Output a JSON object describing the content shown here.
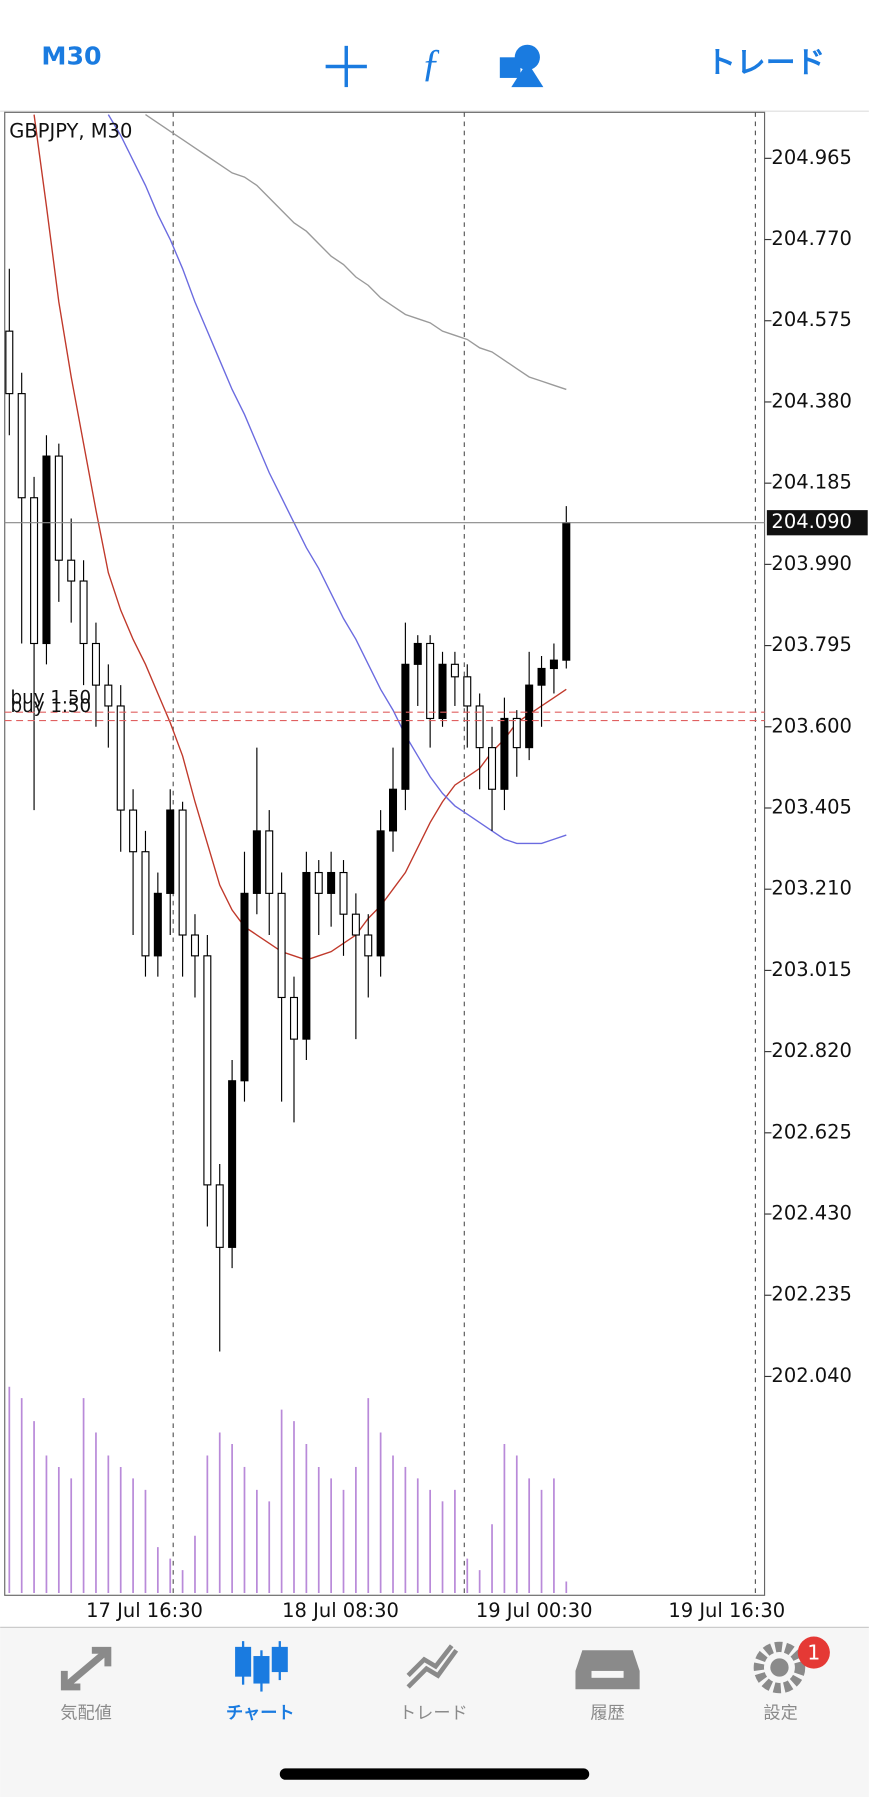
{
  "header": {
    "timeframe": "M30",
    "trade": "トレード"
  },
  "chart_data": {
    "type": "candlestick",
    "title": "GBPJPY, M30",
    "open": [
      204.55,
      204.4,
      204.15,
      203.8,
      204.25,
      204.0,
      203.95,
      203.8,
      203.7,
      203.65,
      203.4,
      203.3,
      203.05,
      203.2,
      203.4,
      203.1,
      203.05,
      202.5,
      202.35,
      202.75,
      203.2,
      203.35,
      203.2,
      202.95,
      202.85,
      203.25,
      203.2,
      203.25,
      203.15,
      203.1,
      203.05,
      203.35,
      203.45,
      203.75,
      203.8,
      203.62,
      203.75,
      203.72,
      203.65,
      203.55,
      203.45,
      203.62,
      203.55,
      203.7,
      203.74,
      203.76
    ],
    "high": [
      204.7,
      204.45,
      204.2,
      204.3,
      204.28,
      204.1,
      204.0,
      203.85,
      203.75,
      203.7,
      203.45,
      203.35,
      203.25,
      203.45,
      203.42,
      203.15,
      203.1,
      202.55,
      202.8,
      203.3,
      203.55,
      203.4,
      203.25,
      203.0,
      203.3,
      203.28,
      203.3,
      203.28,
      203.2,
      203.15,
      203.4,
      203.55,
      203.85,
      203.82,
      203.82,
      203.78,
      203.78,
      203.75,
      203.68,
      203.6,
      203.67,
      203.64,
      203.78,
      203.77,
      203.8,
      204.13
    ],
    "low": [
      204.3,
      203.8,
      203.4,
      203.75,
      203.9,
      203.85,
      203.7,
      203.6,
      203.55,
      203.3,
      203.1,
      203.0,
      203.0,
      203.1,
      203.0,
      202.95,
      202.4,
      202.1,
      202.3,
      202.7,
      203.15,
      203.1,
      202.7,
      202.65,
      202.8,
      203.1,
      203.12,
      203.05,
      202.85,
      202.95,
      203.0,
      203.3,
      203.4,
      203.65,
      203.55,
      203.6,
      203.65,
      203.55,
      203.45,
      203.35,
      203.4,
      203.48,
      203.52,
      203.6,
      203.68,
      203.74
    ],
    "close": [
      204.4,
      204.15,
      203.8,
      204.25,
      204.0,
      203.95,
      203.8,
      203.7,
      203.65,
      203.4,
      203.3,
      203.05,
      203.2,
      203.4,
      203.1,
      203.05,
      202.5,
      202.35,
      202.75,
      203.2,
      203.35,
      203.2,
      202.95,
      202.85,
      203.25,
      203.2,
      203.25,
      203.15,
      203.1,
      203.05,
      203.35,
      203.45,
      203.75,
      203.8,
      203.62,
      203.75,
      203.72,
      203.65,
      203.55,
      203.45,
      203.62,
      203.55,
      203.7,
      203.74,
      203.76,
      204.09
    ],
    "volume": [
      90,
      85,
      75,
      60,
      55,
      50,
      85,
      70,
      60,
      55,
      50,
      45,
      20,
      15,
      10,
      25,
      60,
      70,
      65,
      55,
      45,
      40,
      80,
      75,
      65,
      55,
      50,
      45,
      55,
      85,
      70,
      60,
      55,
      50,
      45,
      40,
      45,
      15,
      10,
      30,
      65,
      60,
      50,
      45,
      50,
      5
    ],
    "vlim": [
      0,
      100
    ],
    "volume_color": "#b98ad9",
    "bull_color": "#000000",
    "bear_color": "#ffffff",
    "moving_averages": [
      {
        "color": "#c0392b",
        "values": [
          null,
          null,
          205.07,
          204.85,
          204.62,
          204.44,
          204.28,
          204.12,
          203.97,
          203.88,
          203.81,
          203.75,
          203.68,
          203.61,
          203.53,
          203.42,
          203.32,
          203.22,
          203.16,
          203.12,
          203.1,
          203.08,
          203.06,
          203.05,
          203.04,
          203.05,
          203.06,
          203.08,
          203.1,
          203.14,
          203.17,
          203.21,
          203.25,
          203.31,
          203.37,
          203.42,
          203.46,
          203.48,
          203.5,
          203.54,
          203.57,
          203.61,
          203.63,
          203.65,
          203.67,
          203.69
        ]
      },
      {
        "color": "#6b6be0",
        "values": [
          null,
          null,
          null,
          null,
          null,
          null,
          null,
          null,
          205.07,
          205.02,
          204.96,
          204.9,
          204.83,
          204.77,
          204.7,
          204.62,
          204.55,
          204.48,
          204.41,
          204.35,
          204.28,
          204.21,
          204.15,
          204.09,
          204.03,
          203.98,
          203.92,
          203.86,
          203.81,
          203.75,
          203.69,
          203.64,
          203.58,
          203.53,
          203.48,
          203.44,
          203.41,
          203.39,
          203.37,
          203.35,
          203.33,
          203.32,
          203.32,
          203.32,
          203.33,
          203.34
        ]
      },
      {
        "color": "#9a9a9a",
        "values": [
          null,
          null,
          null,
          null,
          null,
          null,
          null,
          null,
          null,
          null,
          null,
          205.07,
          205.05,
          205.03,
          205.01,
          204.99,
          204.97,
          204.95,
          204.93,
          204.92,
          204.9,
          204.87,
          204.84,
          204.81,
          204.79,
          204.76,
          204.73,
          204.71,
          204.68,
          204.66,
          204.63,
          204.61,
          204.59,
          204.58,
          204.57,
          204.55,
          204.54,
          204.53,
          204.51,
          204.5,
          204.48,
          204.46,
          204.44,
          204.43,
          204.42,
          204.41
        ]
      }
    ],
    "ylim": [
      201.52,
      205.07
    ],
    "yticks": [
      204.965,
      {
        "value": 204.77,
        "label": "204.770"
      },
      204.575,
      {
        "value": 204.38,
        "label": "204.380"
      },
      204.185,
      {
        "value": 203.99,
        "label": "203.990"
      },
      203.795,
      {
        "value": 203.6,
        "label": "203.600"
      },
      203.405,
      {
        "value": 203.21,
        "label": "203.210"
      },
      203.015,
      {
        "value": 202.82,
        "label": "202.820"
      },
      202.625,
      {
        "value": 202.43,
        "label": "202.430"
      },
      202.235,
      {
        "value": 202.04,
        "label": "202.040"
      }
    ],
    "last_price": {
      "value": 204.09,
      "label": "204.090"
    },
    "orders": [
      {
        "label": "buy 1.50",
        "value": 203.635
      },
      {
        "label": "buy 1.50",
        "value": 203.615
      }
    ],
    "order_color": "#e06060",
    "x_labels": [
      "17 Jul 16:30",
      "18 Jul 08:30",
      "19 Jul 00:30",
      "19 Jul 16:30"
    ]
  },
  "tabs": [
    {
      "label": "気配値"
    },
    {
      "label": "チャート",
      "active": true
    },
    {
      "label": "トレード"
    },
    {
      "label": "履歴"
    },
    {
      "label": "設定",
      "badge": 1
    }
  ]
}
